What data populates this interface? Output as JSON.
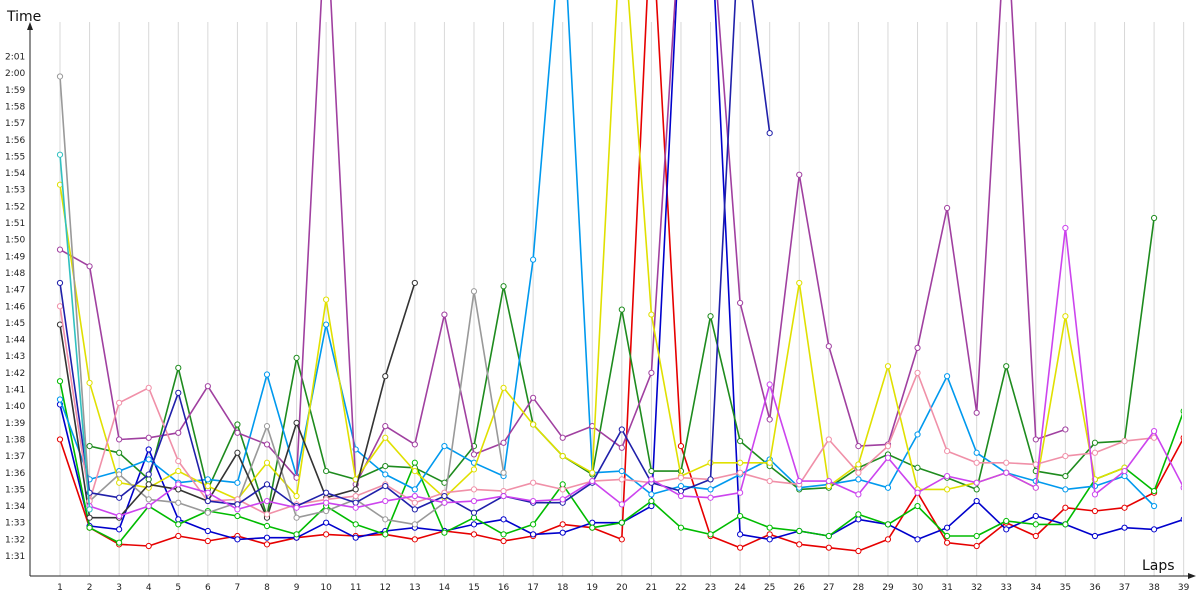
{
  "chart_data": {
    "type": "line",
    "xlabel": "Laps",
    "ylabel": "Time",
    "grid": true,
    "legend": "none",
    "x": [
      1,
      2,
      3,
      4,
      5,
      6,
      7,
      8,
      9,
      10,
      11,
      12,
      13,
      14,
      15,
      16,
      17,
      18,
      19,
      20,
      21,
      22,
      23,
      24,
      25,
      26,
      27,
      28,
      29,
      30,
      31,
      32,
      33,
      34,
      35,
      36,
      37,
      38,
      39
    ],
    "x_tick_labels": [
      "1",
      "2",
      "3",
      "4",
      "5",
      "6",
      "7",
      "8",
      "9",
      "10",
      "11",
      "12",
      "13",
      "14",
      "15",
      "16",
      "17",
      "18",
      "19",
      "20",
      "21",
      "22",
      "23",
      "24",
      "25",
      "26",
      "27",
      "28",
      "29",
      "30",
      "31",
      "32",
      "33",
      "34",
      "35",
      "36",
      "37",
      "38",
      "39"
    ],
    "ylim": [
      90.5,
      122.5
    ],
    "y_ticks": [
      91,
      92,
      93,
      94,
      95,
      96,
      97,
      98,
      99,
      100,
      101,
      102,
      103,
      104,
      105,
      106,
      107,
      108,
      109,
      110,
      111,
      112,
      113,
      114,
      115,
      116,
      117,
      118,
      119,
      120,
      121
    ],
    "y_tick_labels": [
      "1:31",
      "1:32",
      "1:33",
      "1:34",
      "1:35",
      "1:36",
      "1:37",
      "1:38",
      "1:39",
      "1:40",
      "1:41",
      "1:42",
      "1:43",
      "1:44",
      "1:45",
      "1:46",
      "1:47",
      "1:48",
      "1:49",
      "1:50",
      "1:51",
      "1:52",
      "1:53",
      "1:54",
      "1:55",
      "1:56",
      "1:57",
      "1:58",
      "1:59",
      "2:00",
      "2:01"
    ],
    "series": [
      {
        "color": "#e60000",
        "values": [
          98.0,
          92.7,
          91.7,
          91.6,
          92.2,
          91.9,
          92.2,
          91.7,
          92.1,
          92.3,
          92.2,
          92.3,
          92.0,
          92.5,
          92.3,
          91.9,
          92.2,
          92.9,
          92.7,
          92.0,
          130,
          97.6,
          92.2,
          91.5,
          92.3,
          91.7,
          91.5,
          91.3,
          92.0,
          94.8,
          91.8,
          91.6,
          93.0,
          92.2,
          93.9,
          93.7,
          93.9,
          94.8,
          98.1
        ]
      },
      {
        "color": "#0000cc",
        "values": [
          100.1,
          92.8,
          92.6,
          97.4,
          93.2,
          92.5,
          92.0,
          92.1,
          92.1,
          93.0,
          92.1,
          92.5,
          92.7,
          92.5,
          92.9,
          93.2,
          92.3,
          92.4,
          93.0,
          93.0,
          94.0,
          130,
          130,
          92.3,
          92.0,
          92.5,
          92.2,
          93.2,
          92.9,
          92.0,
          92.7,
          94.3,
          92.6,
          93.4,
          92.9,
          92.2,
          92.7,
          92.6,
          93.2
        ]
      },
      {
        "color": "#00bb00",
        "values": [
          101.5,
          92.7,
          91.8,
          94.0,
          92.9,
          93.7,
          93.4,
          92.8,
          92.3,
          94.0,
          92.9,
          92.3,
          96.6,
          92.4,
          93.3,
          92.3,
          92.9,
          95.3,
          92.7,
          93.0,
          94.3,
          92.7,
          92.3,
          93.4,
          92.7,
          92.5,
          92.2,
          93.5,
          92.9,
          94.0,
          92.2,
          92.2,
          93.1,
          92.9,
          92.9,
          95.6,
          96.3,
          94.9,
          99.7
        ]
      },
      {
        "color": "#1e8b1e",
        "values": [
          null,
          97.6,
          97.2,
          95.6,
          102.3,
          95.0,
          98.9,
          93.4,
          102.9,
          96.1,
          95.6,
          96.4,
          96.3,
          95.4,
          97.6,
          107.2,
          98.9,
          97.0,
          95.9,
          105.8,
          96.1,
          96.1,
          105.4,
          97.9,
          96.4,
          95.0,
          95.1,
          96.3,
          97.1,
          96.3,
          95.7,
          95.0,
          102.4,
          96.1,
          95.8,
          97.8,
          97.9,
          111.3,
          null
        ]
      },
      {
        "color": "#0099ee",
        "values": [
          100.4,
          95.6,
          96.1,
          96.8,
          95.4,
          95.6,
          95.4,
          101.9,
          95.8,
          104.9,
          97.4,
          95.9,
          95.0,
          97.6,
          96.6,
          95.8,
          108.8,
          130,
          96.0,
          96.1,
          94.7,
          95.2,
          95.0,
          95.9,
          96.8,
          95.1,
          95.3,
          95.6,
          95.1,
          98.3,
          101.8,
          97.2,
          96.0,
          95.5,
          95.0,
          95.2,
          95.8,
          94.0,
          null
        ]
      },
      {
        "color": "#a040a0",
        "values": [
          109.4,
          108.4,
          98.0,
          98.1,
          98.4,
          101.2,
          98.4,
          97.7,
          95.7,
          130,
          95.3,
          98.8,
          97.7,
          105.5,
          97.1,
          97.8,
          100.5,
          98.1,
          98.8,
          97.5,
          102.0,
          130,
          130,
          106.2,
          99.2,
          113.9,
          103.6,
          97.6,
          97.7,
          103.5,
          111.9,
          99.6,
          130,
          98.0,
          98.6,
          null,
          null,
          null,
          null
        ]
      },
      {
        "color": "#e0e000",
        "values": [
          113.3,
          101.4,
          95.4,
          95.1,
          96.1,
          95.2,
          94.4,
          96.6,
          94.6,
          106.4,
          95.6,
          98.1,
          96.1,
          94.5,
          96.2,
          101.1,
          98.9,
          97.0,
          96.0,
          130,
          105.5,
          95.8,
          96.6,
          96.6,
          96.6,
          107.4,
          95.2,
          96.5,
          102.4,
          95.0,
          95.0,
          95.4,
          96.0,
          95.1,
          105.4,
          95.6,
          96.3,
          null,
          null
        ]
      },
      {
        "color": "#999999",
        "values": [
          119.8,
          94.3,
          95.9,
          94.4,
          94.2,
          93.6,
          94.2,
          98.8,
          93.3,
          93.7,
          94.4,
          93.2,
          92.9,
          94.2,
          106.9,
          96.0,
          null,
          null,
          null,
          null,
          null,
          null,
          null,
          null,
          null,
          null,
          null,
          null,
          null,
          null,
          null,
          null,
          null,
          null,
          null,
          null,
          null,
          null,
          null
        ]
      },
      {
        "color": "#333333",
        "values": [
          104.9,
          93.3,
          93.3,
          95.3,
          95.0,
          94.3,
          97.2,
          93.3,
          99.0,
          94.5,
          95.0,
          101.8,
          107.4,
          null,
          null,
          null,
          null,
          null,
          null,
          null,
          null,
          null,
          null,
          null,
          null,
          null,
          null,
          null,
          null,
          null,
          null,
          null,
          null,
          null,
          null,
          null,
          null,
          null,
          null
        ]
      },
      {
        "color": "#f090a8",
        "values": [
          106.0,
          94.3,
          100.2,
          101.1,
          96.7,
          94.3,
          94.4,
          93.5,
          94.1,
          94.4,
          94.6,
          95.3,
          94.2,
          94.8,
          95.0,
          94.9,
          95.4,
          95.0,
          95.5,
          95.6,
          95.4,
          95.7,
          95.6,
          96.0,
          95.5,
          95.3,
          98.0,
          96.0,
          97.6,
          102.0,
          97.3,
          96.6,
          96.6,
          96.5,
          97.0,
          97.2,
          97.9,
          98.1,
          null
        ]
      },
      {
        "color": "#2020aa",
        "values": [
          107.4,
          94.8,
          94.5,
          95.9,
          100.8,
          94.3,
          94.1,
          95.3,
          94.0,
          94.8,
          94.2,
          95.2,
          93.8,
          94.6,
          93.6,
          94.6,
          94.2,
          94.2,
          95.4,
          98.6,
          95.4,
          94.9,
          95.6,
          130,
          116.4,
          null,
          null,
          null,
          null,
          null,
          null,
          null,
          null,
          null,
          null,
          null,
          null,
          null,
          null
        ]
      },
      {
        "color": "#cc44ee",
        "values": [
          null,
          94.0,
          93.4,
          94.0,
          95.3,
          94.8,
          93.8,
          94.3,
          93.9,
          94.2,
          93.9,
          94.3,
          94.6,
          94.2,
          94.3,
          94.6,
          94.3,
          94.4,
          95.5,
          94.1,
          95.6,
          94.6,
          94.5,
          94.8,
          101.3,
          95.5,
          95.5,
          94.7,
          96.9,
          94.8,
          95.8,
          95.4,
          96.0,
          95.1,
          110.7,
          94.7,
          96.1,
          98.5,
          95.1
        ]
      },
      {
        "color": "#30c0c0",
        "values": [
          115.1,
          93.8,
          null,
          null,
          null,
          null,
          null,
          null,
          null,
          null,
          null,
          null,
          null,
          null,
          null,
          null,
          null,
          null,
          null,
          null,
          null,
          null,
          null,
          null,
          null,
          null,
          null,
          null,
          null,
          null,
          null,
          null,
          null,
          null,
          null,
          null,
          null,
          null,
          null
        ]
      }
    ]
  }
}
